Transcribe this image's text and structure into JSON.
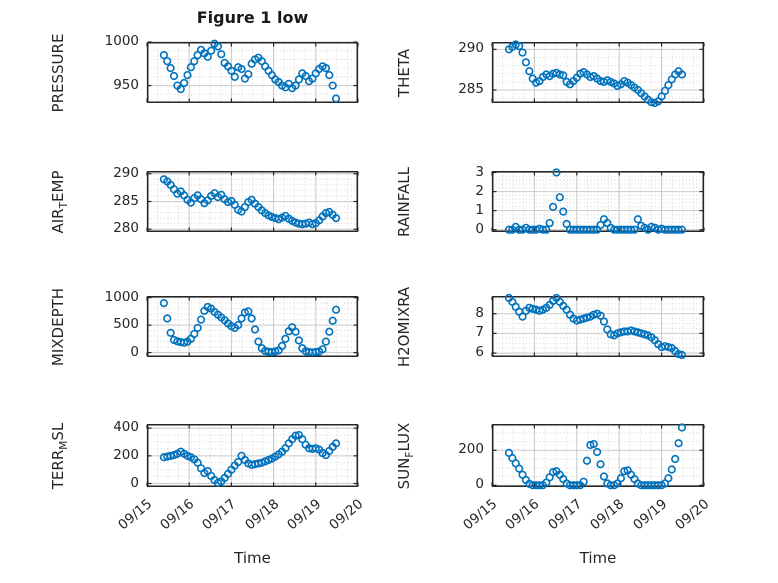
{
  "figure": {
    "title": "Figure 1 low",
    "xlabel": "Time",
    "background": "#ffffff",
    "marker_color": "#0072BD",
    "axis_color": "#262626",
    "major_grid_color": "#c9c9c9",
    "minor_grid_color": "#d6d6d6",
    "text_color": "#262626"
  },
  "x_axis": {
    "tick_labels": [
      "09/15",
      "09/16",
      "09/17",
      "09/18",
      "09/19",
      "09/20"
    ],
    "tick_values": [
      0,
      1,
      2,
      3,
      4,
      5
    ],
    "xlim": [
      0,
      5
    ],
    "minor_step": 0.25
  },
  "time_days": [
    0.4,
    0.48,
    0.56,
    0.64,
    0.72,
    0.8,
    0.88,
    0.96,
    1.04,
    1.12,
    1.2,
    1.28,
    1.36,
    1.44,
    1.52,
    1.6,
    1.68,
    1.76,
    1.84,
    1.92,
    2.0,
    2.08,
    2.16,
    2.24,
    2.32,
    2.4,
    2.48,
    2.56,
    2.64,
    2.72,
    2.8,
    2.88,
    2.96,
    3.04,
    3.12,
    3.2,
    3.28,
    3.36,
    3.44,
    3.52,
    3.6,
    3.68,
    3.76,
    3.84,
    3.92,
    4.0,
    4.08,
    4.16,
    4.24,
    4.32,
    4.4,
    4.48
  ],
  "chart_data": [
    {
      "id": "pressure",
      "type": "scatter",
      "ylabel": {
        "pre": "PRESSURE",
        "sub": "",
        "post": ""
      },
      "yticks": [
        950,
        1000
      ],
      "ylim": [
        930,
        1000
      ],
      "y_minor_step": 10,
      "values": [
        985,
        978,
        970,
        961,
        950,
        946,
        953,
        962,
        971,
        978,
        985,
        991,
        987,
        983,
        990,
        998,
        995,
        986,
        976,
        972,
        967,
        960,
        971,
        969,
        958,
        963,
        975,
        980,
        982,
        978,
        972,
        967,
        962,
        957,
        954,
        950,
        948,
        952,
        947,
        950,
        957,
        964,
        961,
        955,
        958,
        964,
        969,
        972,
        970,
        962,
        950,
        935
      ]
    },
    {
      "id": "theta",
      "type": "scatter",
      "ylabel": {
        "pre": "THETA",
        "sub": "",
        "post": ""
      },
      "yticks": [
        285,
        290
      ],
      "ylim": [
        283.4,
        290.9
      ],
      "y_minor_step": 1,
      "values": [
        290.0,
        290.3,
        290.6,
        290.4,
        289.6,
        288.4,
        287.3,
        286.4,
        285.9,
        286.1,
        286.6,
        286.9,
        286.7,
        287.0,
        287.1,
        286.9,
        286.8,
        286.0,
        285.7,
        286.1,
        286.5,
        287.0,
        287.2,
        286.9,
        286.6,
        286.7,
        286.4,
        286.1,
        286.0,
        286.2,
        286.0,
        285.8,
        285.5,
        285.7,
        286.1,
        285.9,
        285.6,
        285.3,
        285.0,
        284.6,
        284.2,
        283.8,
        283.5,
        283.4,
        283.6,
        284.2,
        284.9,
        285.6,
        286.3,
        286.9,
        287.3,
        286.9
      ]
    },
    {
      "id": "air-temp",
      "type": "scatter",
      "ylabel": {
        "pre": "AIR",
        "sub": "T",
        "post": "EMP"
      },
      "yticks": [
        280,
        285,
        290
      ],
      "ylim": [
        279.5,
        290.5
      ],
      "y_minor_step": 1,
      "values": [
        289.0,
        288.6,
        288.0,
        287.2,
        286.4,
        286.8,
        286.1,
        285.3,
        284.8,
        285.6,
        286.1,
        285.4,
        284.7,
        285.2,
        286.0,
        286.5,
        285.8,
        286.2,
        285.4,
        284.9,
        285.1,
        284.4,
        283.5,
        283.2,
        284.0,
        284.9,
        285.3,
        284.6,
        284.0,
        283.4,
        282.9,
        282.5,
        282.2,
        282.0,
        281.8,
        282.1,
        282.4,
        281.9,
        281.5,
        281.2,
        281.0,
        280.9,
        281.0,
        281.2,
        280.9,
        281.1,
        281.6,
        282.3,
        282.9,
        283.1,
        282.6,
        282.0
      ]
    },
    {
      "id": "rainfall",
      "type": "scatter",
      "ylabel": {
        "pre": "RAINFALL",
        "sub": "",
        "post": ""
      },
      "yticks": [
        0,
        1,
        2,
        3
      ],
      "ylim": [
        -0.12,
        3.08
      ],
      "y_minor_step": 0.2,
      "values": [
        0,
        0,
        0.15,
        0,
        0,
        0.1,
        0,
        0,
        0,
        0.05,
        0,
        0,
        0.35,
        1.2,
        3.0,
        1.7,
        0.95,
        0.3,
        0,
        0,
        0,
        0,
        0,
        0,
        0,
        0,
        0,
        0.25,
        0.55,
        0.35,
        0.1,
        0,
        0,
        0,
        0,
        0,
        0,
        0,
        0.55,
        0.2,
        0.1,
        0,
        0.15,
        0.1,
        0,
        0.05,
        0,
        0,
        0,
        0,
        0,
        0
      ]
    },
    {
      "id": "mixdepth",
      "type": "scatter",
      "ylabel": {
        "pre": "MIXDEPTH",
        "sub": "",
        "post": ""
      },
      "yticks": [
        0,
        500,
        1000
      ],
      "ylim": [
        -80,
        1030
      ],
      "y_minor_step": 100,
      "values": [
        900,
        620,
        360,
        230,
        205,
        190,
        180,
        200,
        250,
        340,
        450,
        600,
        760,
        830,
        800,
        740,
        690,
        640,
        590,
        530,
        480,
        450,
        500,
        620,
        730,
        750,
        620,
        420,
        200,
        80,
        30,
        15,
        10,
        20,
        40,
        120,
        250,
        390,
        460,
        380,
        220,
        80,
        25,
        10,
        5,
        10,
        20,
        60,
        200,
        380,
        580,
        780
      ]
    },
    {
      "id": "h2omixra",
      "type": "scatter",
      "ylabel": {
        "pre": "H2OMIXRA",
        "sub": "",
        "post": ""
      },
      "yticks": [
        6,
        7,
        8
      ],
      "ylim": [
        5.8,
        8.9
      ],
      "y_minor_step": 0.25,
      "values": [
        8.8,
        8.6,
        8.35,
        8.1,
        7.85,
        8.15,
        8.3,
        8.25,
        8.2,
        8.15,
        8.2,
        8.3,
        8.45,
        8.65,
        8.8,
        8.6,
        8.4,
        8.2,
        7.95,
        7.75,
        7.65,
        7.7,
        7.75,
        7.8,
        7.85,
        7.95,
        8.0,
        7.9,
        7.6,
        7.2,
        6.95,
        6.9,
        7.0,
        7.05,
        7.1,
        7.1,
        7.15,
        7.1,
        7.05,
        7.0,
        6.95,
        6.9,
        6.8,
        6.65,
        6.45,
        6.3,
        6.35,
        6.3,
        6.25,
        6.1,
        5.95,
        5.9
      ]
    },
    {
      "id": "terr-msl",
      "type": "scatter",
      "ylabel": {
        "pre": "TERR",
        "sub": "M",
        "post": "SL"
      },
      "yticks": [
        0,
        200,
        400
      ],
      "ylim": [
        -25,
        430
      ],
      "y_minor_step": 50,
      "values": [
        190,
        195,
        200,
        205,
        215,
        230,
        215,
        200,
        190,
        175,
        150,
        110,
        75,
        90,
        55,
        25,
        5,
        15,
        40,
        70,
        100,
        130,
        155,
        200,
        170,
        145,
        135,
        140,
        145,
        150,
        160,
        170,
        180,
        195,
        210,
        230,
        255,
        290,
        320,
        345,
        350,
        320,
        280,
        255,
        250,
        255,
        245,
        220,
        205,
        235,
        265,
        290
      ]
    },
    {
      "id": "sun-flux",
      "type": "scatter",
      "ylabel": {
        "pre": "SUN",
        "sub": "F",
        "post": "LUX"
      },
      "yticks": [
        0,
        200
      ],
      "ylim": [
        -10,
        350
      ],
      "y_minor_step": 50,
      "values": [
        185,
        155,
        125,
        95,
        60,
        30,
        8,
        0,
        0,
        0,
        0,
        15,
        45,
        75,
        80,
        60,
        35,
        10,
        0,
        0,
        0,
        0,
        20,
        140,
        230,
        235,
        190,
        120,
        50,
        10,
        0,
        0,
        10,
        40,
        80,
        85,
        60,
        35,
        10,
        0,
        0,
        0,
        0,
        0,
        0,
        0,
        10,
        40,
        90,
        150,
        240,
        330
      ]
    }
  ]
}
